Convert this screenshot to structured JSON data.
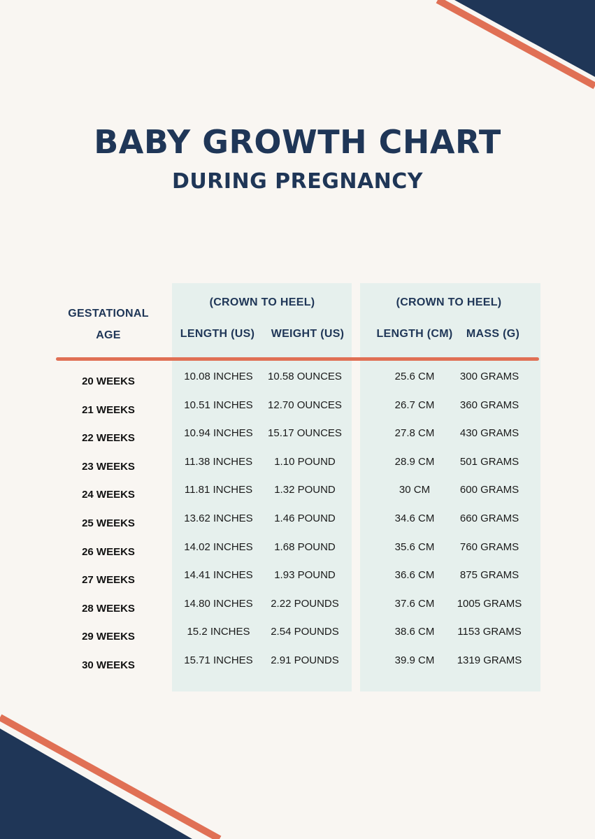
{
  "title": "BABY GROWTH CHART",
  "subtitle": "DURING PREGNANCY",
  "colors": {
    "navy": "#1f3657",
    "coral": "#e07055",
    "panel": "#e6f0ed",
    "background": "#f9f6f2"
  },
  "table": {
    "age_header_line1": "GESTATIONAL",
    "age_header_line2": "AGE",
    "group_us_label": "(CROWN TO HEEL)",
    "group_metric_label": "(CROWN TO HEEL)",
    "columns": [
      "LENGTH (US)",
      "WEIGHT (US)",
      "LENGTH (CM)",
      "MASS (G)"
    ],
    "rows": [
      {
        "age": "20 WEEKS",
        "length_us": "10.08 INCHES",
        "weight_us": "10.58 OUNCES",
        "length_cm": "25.6 CM",
        "mass_g": "300 GRAMS"
      },
      {
        "age": "21 WEEKS",
        "length_us": "10.51 INCHES",
        "weight_us": "12.70 OUNCES",
        "length_cm": "26.7 CM",
        "mass_g": "360 GRAMS"
      },
      {
        "age": "22 WEEKS",
        "length_us": "10.94 INCHES",
        "weight_us": "15.17 OUNCES",
        "length_cm": "27.8 CM",
        "mass_g": "430 GRAMS"
      },
      {
        "age": "23 WEEKS",
        "length_us": "11.38 INCHES",
        "weight_us": "1.10 POUND",
        "length_cm": "28.9 CM",
        "mass_g": "501 GRAMS"
      },
      {
        "age": "24 WEEKS",
        "length_us": "11.81 INCHES",
        "weight_us": "1.32 POUND",
        "length_cm": "30 CM",
        "mass_g": "600 GRAMS"
      },
      {
        "age": "25 WEEKS",
        "length_us": "13.62 INCHES",
        "weight_us": "1.46 POUND",
        "length_cm": "34.6 CM",
        "mass_g": "660 GRAMS"
      },
      {
        "age": "26 WEEKS",
        "length_us": "14.02 INCHES",
        "weight_us": "1.68 POUND",
        "length_cm": "35.6 CM",
        "mass_g": "760 GRAMS"
      },
      {
        "age": "27 WEEKS",
        "length_us": "14.41 INCHES",
        "weight_us": "1.93 POUND",
        "length_cm": "36.6 CM",
        "mass_g": "875 GRAMS"
      },
      {
        "age": "28 WEEKS",
        "length_us": "14.80 INCHES",
        "weight_us": "2.22 POUNDS",
        "length_cm": "37.6 CM",
        "mass_g": "1005 GRAMS"
      },
      {
        "age": "29 WEEKS",
        "length_us": "15.2 INCHES",
        "weight_us": "2.54 POUNDS",
        "length_cm": "38.6 CM",
        "mass_g": "1153 GRAMS"
      },
      {
        "age": "30 WEEKS",
        "length_us": "15.71 INCHES",
        "weight_us": "2.91 POUNDS",
        "length_cm": "39.9 CM",
        "mass_g": "1319 GRAMS"
      }
    ]
  }
}
